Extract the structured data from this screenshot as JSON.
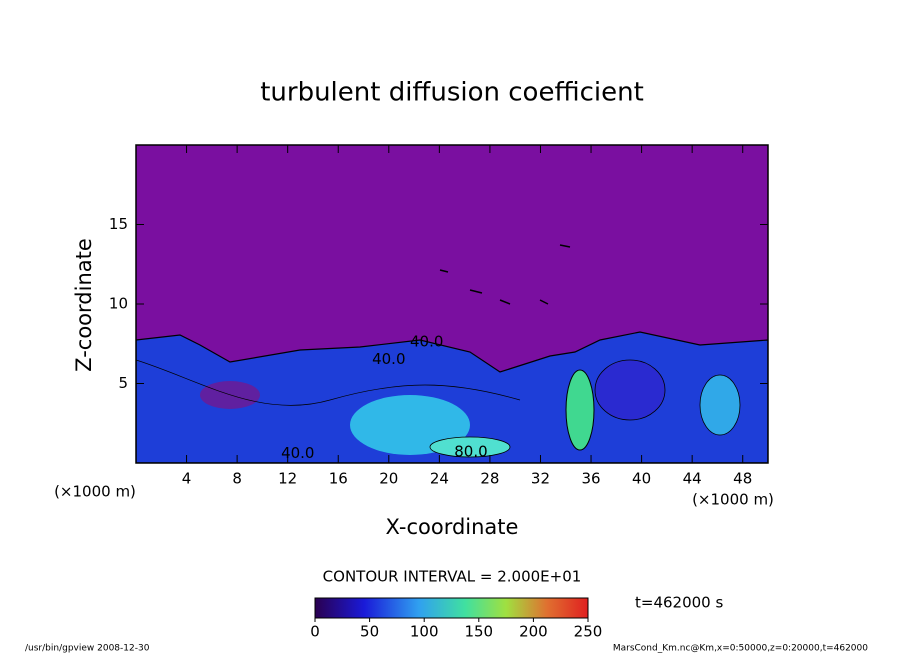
{
  "chart_data": {
    "type": "contour",
    "title": "turbulent diffusion coefficient",
    "x_label": "X-coordinate",
    "y_label": "Z-coordinate",
    "x_unit": "(×1000 m)",
    "y_unit": "(×1000 m)",
    "xlim": [
      0,
      50
    ],
    "xticks": [
      4,
      8,
      12,
      16,
      20,
      24,
      28,
      32,
      36,
      40,
      44,
      48
    ],
    "ylim": [
      0,
      20
    ],
    "yticks": [
      5,
      10,
      15
    ],
    "contour_labels": [
      {
        "text": "40.0",
        "x": 20,
        "y": 6.5
      },
      {
        "text": "40.0",
        "x": 23,
        "y": 7.6
      },
      {
        "text": "80.0",
        "x": 26.5,
        "y": 0.7
      },
      {
        "text": "40.0",
        "x": 12.8,
        "y": 0.6
      }
    ],
    "contour_interval": "CONTOUR INTERVAL = 2.000E+01",
    "colorbar": {
      "lim": [
        0,
        250
      ],
      "ticks": [
        0,
        50,
        100,
        150,
        200,
        250
      ]
    },
    "time_label": "t=462000 s",
    "footer_left": "/usr/bin/gpview  2008-12-30",
    "footer_right": "MarsCond_Km.nc@Km,x=0:50000,z=0:20000,t=462000"
  }
}
